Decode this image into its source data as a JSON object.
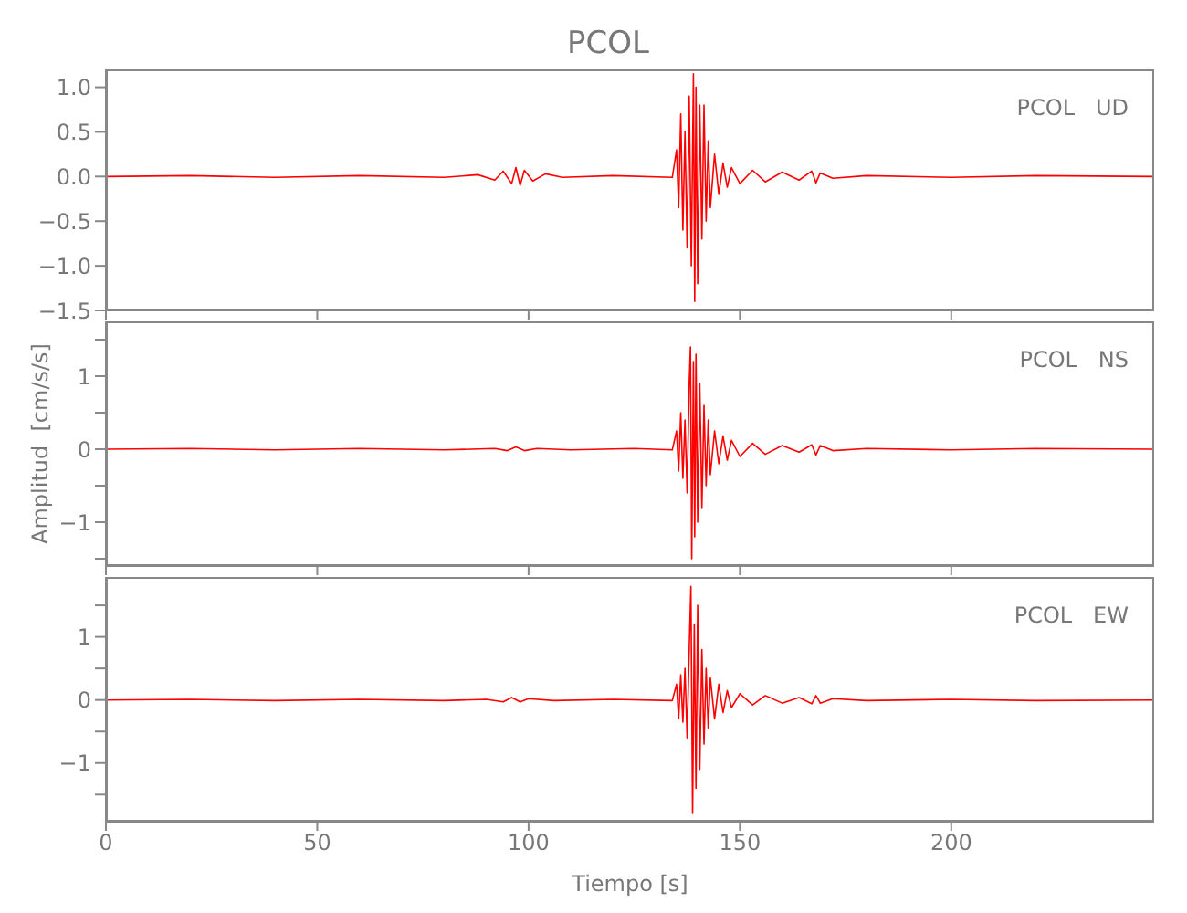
{
  "chart_data": [
    {
      "type": "line",
      "title": "PCOL",
      "annotations": [
        "PCOL   UD"
      ],
      "tick_labels": "y",
      "x": [
        0,
        20,
        40,
        60,
        80,
        88,
        92,
        94,
        96,
        97,
        98,
        99,
        101,
        104,
        108,
        120,
        134,
        135,
        135.5,
        136,
        136.5,
        137,
        137.5,
        138,
        138.5,
        139,
        139.3,
        139.6,
        140,
        140.5,
        141,
        141.5,
        142,
        142.5,
        143,
        144,
        145,
        146,
        147,
        148,
        150,
        153,
        156,
        160,
        164,
        167,
        168,
        169,
        172,
        180,
        200,
        220,
        248
      ],
      "series": [
        {
          "color": "#ff0000",
          "values": [
            0,
            0.01,
            -0.01,
            0.01,
            -0.01,
            0.02,
            -0.04,
            0.06,
            -0.08,
            0.1,
            -0.1,
            0.07,
            -0.05,
            0.03,
            -0.01,
            0.01,
            -0.01,
            0.3,
            -0.35,
            0.7,
            -0.6,
            0.5,
            -0.8,
            0.9,
            -1.0,
            1.15,
            -1.4,
            1.0,
            -1.2,
            0.8,
            -0.7,
            0.8,
            -0.5,
            0.4,
            -0.35,
            0.25,
            -0.2,
            0.15,
            -0.12,
            0.1,
            -0.08,
            0.07,
            -0.06,
            0.05,
            -0.04,
            0.06,
            -0.07,
            0.04,
            -0.02,
            0.01,
            -0.01,
            0.01,
            0
          ]
        }
      ],
      "xlim": [
        0,
        248
      ],
      "xticks": [
        {
          "value": 0,
          "label": null
        },
        {
          "value": 50,
          "label": null
        },
        {
          "value": 100,
          "label": null
        },
        {
          "value": 150,
          "label": null
        },
        {
          "value": 200,
          "label": null
        }
      ],
      "ylim": [
        -1.5,
        1.2
      ],
      "yticks": [
        {
          "value": -1.5,
          "label": "−1.5"
        },
        {
          "value": -1,
          "label": "−1.0"
        },
        {
          "value": -0.5,
          "label": "−0.5"
        },
        {
          "value": 0,
          "label": "0.0"
        },
        {
          "value": 0.5,
          "label": "0.5"
        },
        {
          "value": 1,
          "label": "1.0"
        }
      ]
    },
    {
      "type": "line",
      "ylabel": "Amplitud  [cm/s/s]",
      "annotations": [
        "PCOL   NS"
      ],
      "tick_labels": "y",
      "x": [
        0,
        20,
        40,
        60,
        80,
        92,
        95,
        97,
        99,
        102,
        110,
        125,
        134,
        135,
        135.5,
        136,
        136.5,
        137,
        137.5,
        138,
        138.3,
        138.6,
        139,
        139.3,
        139.6,
        140,
        140.5,
        141,
        141.5,
        142,
        142.5,
        143,
        144,
        145,
        146,
        147,
        148,
        150,
        153,
        156,
        160,
        164,
        167,
        168,
        169,
        172,
        180,
        200,
        220,
        248
      ],
      "series": [
        {
          "color": "#ff0000",
          "values": [
            0,
            0.01,
            -0.01,
            0.01,
            -0.01,
            0.01,
            -0.02,
            0.03,
            -0.02,
            0.01,
            -0.01,
            0.01,
            -0.01,
            0.25,
            -0.3,
            0.5,
            -0.4,
            0.4,
            -0.6,
            0.9,
            1.4,
            -1.5,
            1.2,
            -1.2,
            1.3,
            -1.0,
            0.9,
            -0.8,
            0.6,
            -0.5,
            0.4,
            -0.35,
            0.25,
            -0.2,
            0.18,
            -0.15,
            0.12,
            -0.1,
            0.08,
            -0.07,
            0.05,
            -0.04,
            0.06,
            -0.08,
            0.05,
            -0.02,
            0.01,
            -0.01,
            0.01,
            0
          ]
        }
      ],
      "xlim": [
        0,
        248
      ],
      "xticks": [
        {
          "value": 0,
          "label": null
        },
        {
          "value": 50,
          "label": null
        },
        {
          "value": 100,
          "label": null
        },
        {
          "value": 150,
          "label": null
        },
        {
          "value": 200,
          "label": null
        }
      ],
      "ylim": [
        -1.6,
        1.75
      ],
      "yticks": [
        {
          "value": -1.5,
          "label": null
        },
        {
          "value": -1,
          "label": "−1"
        },
        {
          "value": -0.5,
          "label": null
        },
        {
          "value": 0,
          "label": "0"
        },
        {
          "value": 0.5,
          "label": null
        },
        {
          "value": 1,
          "label": "1"
        },
        {
          "value": 1.5,
          "label": null
        }
      ]
    },
    {
      "type": "line",
      "xlabel": "Tiempo  [s]",
      "annotations": [
        "PCOL   EW"
      ],
      "x": [
        0,
        20,
        40,
        60,
        80,
        90,
        94,
        96,
        98,
        100,
        106,
        120,
        134,
        135,
        135.5,
        136,
        136.5,
        137,
        137.5,
        138,
        138.4,
        138.8,
        139.2,
        139.6,
        140,
        140.5,
        141,
        141.5,
        142,
        142.5,
        143,
        144,
        145,
        146,
        147,
        148,
        150,
        153,
        156,
        160,
        164,
        167,
        168,
        169,
        172,
        180,
        200,
        220,
        248
      ],
      "series": [
        {
          "color": "#ff0000",
          "values": [
            0,
            0.01,
            -0.01,
            0.01,
            -0.01,
            0.01,
            -0.03,
            0.04,
            -0.03,
            0.02,
            -0.01,
            0.01,
            -0.01,
            0.25,
            -0.3,
            0.4,
            -0.35,
            0.5,
            -0.6,
            0.8,
            1.8,
            -1.8,
            1.2,
            -1.4,
            1.5,
            -1.1,
            0.8,
            -0.7,
            0.5,
            -0.45,
            0.35,
            -0.3,
            0.25,
            -0.2,
            0.15,
            -0.12,
            0.1,
            -0.08,
            0.07,
            -0.05,
            0.04,
            -0.06,
            0.07,
            -0.05,
            0.02,
            -0.01,
            0.01,
            -0.01,
            0
          ]
        }
      ],
      "xlim": [
        0,
        248
      ],
      "xticks": [
        0,
        50,
        100,
        150,
        200
      ],
      "ylim": [
        -1.93,
        1.95
      ],
      "yticks": [
        {
          "value": -1.5,
          "label": null
        },
        {
          "value": -1,
          "label": "−1"
        },
        {
          "value": -0.5,
          "label": null
        },
        {
          "value": 0,
          "label": "0"
        },
        {
          "value": 0.5,
          "label": null
        },
        {
          "value": 1,
          "label": "1"
        },
        {
          "value": 1.5,
          "label": null
        }
      ]
    }
  ]
}
